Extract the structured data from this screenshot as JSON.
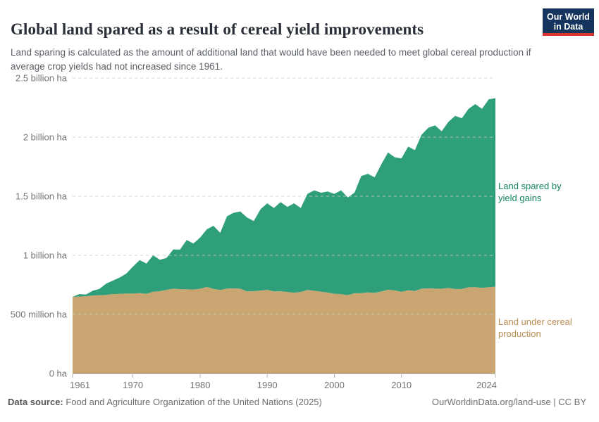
{
  "header": {
    "title": "Global land spared as a result of cereal yield improvements",
    "subtitle": "Land sparing is calculated as the amount of additional land that would have been needed to meet global cereal production if average crop yields had not increased since 1961.",
    "logo": {
      "line1": "Our World",
      "line2": "in Data"
    }
  },
  "chart_data": {
    "type": "area",
    "stacked": true,
    "title": "Global land spared as a result of cereal yield improvements",
    "unit": "hectares",
    "ylim": [
      0,
      2.5
    ],
    "ylim_unit": "billion ha",
    "grid": "dashed-horizontal",
    "legend_position": "right-of-plot",
    "x": [
      1961,
      1962,
      1963,
      1964,
      1965,
      1966,
      1967,
      1968,
      1969,
      1970,
      1971,
      1972,
      1973,
      1974,
      1975,
      1976,
      1977,
      1978,
      1979,
      1980,
      1981,
      1982,
      1983,
      1984,
      1985,
      1986,
      1987,
      1988,
      1989,
      1990,
      1991,
      1992,
      1993,
      1994,
      1995,
      1996,
      1997,
      1998,
      1999,
      2000,
      2001,
      2002,
      2003,
      2004,
      2005,
      2006,
      2007,
      2008,
      2009,
      2010,
      2011,
      2012,
      2013,
      2014,
      2015,
      2016,
      2017,
      2018,
      2019,
      2020,
      2021,
      2022,
      2023,
      2024
    ],
    "series": [
      {
        "name": "Land under cereal production",
        "color": "#c9a572",
        "label_color": "#bd8e55",
        "values_billion_ha": [
          0.648,
          0.651,
          0.654,
          0.66,
          0.662,
          0.664,
          0.672,
          0.674,
          0.676,
          0.676,
          0.68,
          0.674,
          0.692,
          0.697,
          0.708,
          0.717,
          0.714,
          0.713,
          0.711,
          0.717,
          0.732,
          0.716,
          0.707,
          0.718,
          0.72,
          0.717,
          0.695,
          0.697,
          0.702,
          0.708,
          0.696,
          0.696,
          0.69,
          0.684,
          0.69,
          0.707,
          0.7,
          0.692,
          0.685,
          0.675,
          0.671,
          0.663,
          0.679,
          0.68,
          0.686,
          0.682,
          0.694,
          0.709,
          0.703,
          0.691,
          0.704,
          0.699,
          0.717,
          0.721,
          0.718,
          0.717,
          0.724,
          0.714,
          0.715,
          0.73,
          0.731,
          0.725,
          0.73,
          0.735
        ]
      },
      {
        "name": "Land spared by yield gains",
        "color": "#2f9f7b",
        "label_color": "#158464",
        "values_billion_ha": [
          0.0,
          0.021,
          0.014,
          0.04,
          0.054,
          0.096,
          0.114,
          0.138,
          0.169,
          0.229,
          0.28,
          0.256,
          0.308,
          0.265,
          0.27,
          0.333,
          0.334,
          0.417,
          0.389,
          0.433,
          0.488,
          0.534,
          0.483,
          0.612,
          0.64,
          0.653,
          0.625,
          0.593,
          0.688,
          0.732,
          0.704,
          0.754,
          0.72,
          0.756,
          0.71,
          0.813,
          0.85,
          0.838,
          0.855,
          0.845,
          0.879,
          0.827,
          0.851,
          0.99,
          1.004,
          0.978,
          1.076,
          1.161,
          1.127,
          1.129,
          1.216,
          1.191,
          1.303,
          1.359,
          1.382,
          1.333,
          1.406,
          1.466,
          1.445,
          1.51,
          1.549,
          1.515,
          1.59,
          1.595
        ]
      }
    ],
    "yticks": [
      {
        "value": 0.0,
        "label": "0 ha"
      },
      {
        "value": 0.5,
        "label": "500 million ha"
      },
      {
        "value": 1.0,
        "label": "1 billion ha"
      },
      {
        "value": 1.5,
        "label": "1.5 billion ha"
      },
      {
        "value": 2.0,
        "label": "2 billion ha"
      },
      {
        "value": 2.5,
        "label": "2.5 billion ha"
      }
    ],
    "xticks": [
      1961,
      1970,
      1980,
      1990,
      2000,
      2010,
      2024
    ]
  },
  "footer": {
    "source_label": "Data source:",
    "source_text": " Food and Agriculture Organization of the United Nations (2025)",
    "link_text": "OurWorldinData.org/land-use | CC BY"
  }
}
